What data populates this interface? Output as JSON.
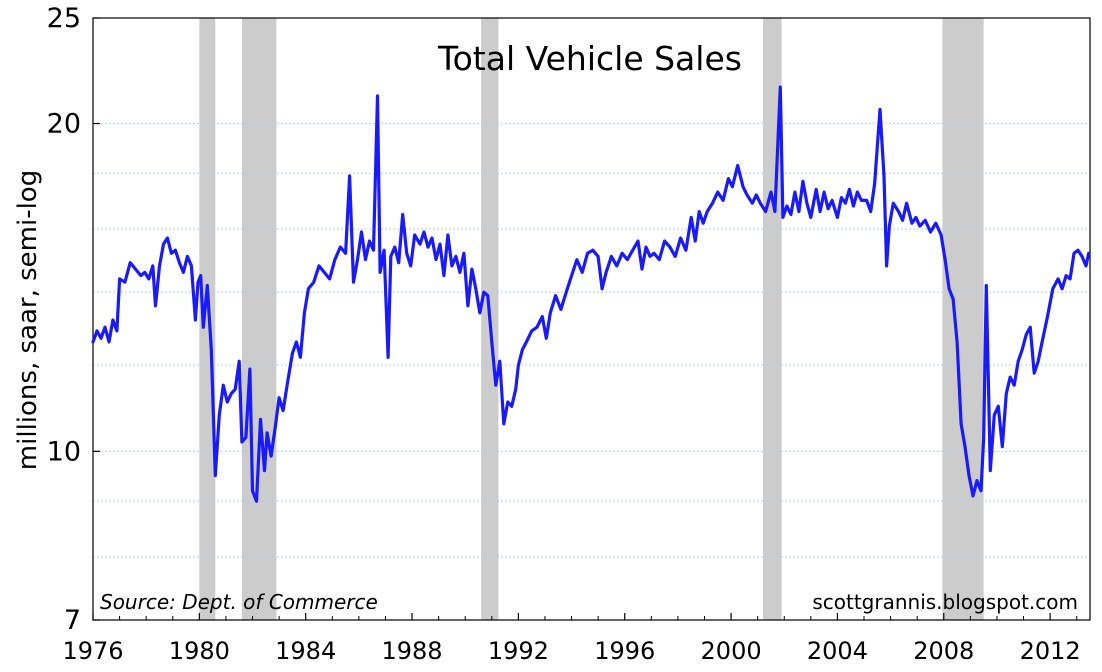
{
  "chart_data": {
    "type": "line",
    "title": "Total Vehicle Sales",
    "ylabel": "millions, saar, semi-log",
    "xlabel": "",
    "y_scale": "log",
    "ylim": [
      7,
      25
    ],
    "xlim": [
      1976,
      2013.5
    ],
    "y_ticks": [
      "7",
      "10",
      "20",
      "25"
    ],
    "x_ticks": [
      "1976",
      "1980",
      "1984",
      "1988",
      "1992",
      "1996",
      "2000",
      "2004",
      "2008",
      "2012"
    ],
    "grid": "horizontal, dotted, light blue",
    "line_color": "#1a1aff",
    "recession_color": "#cccccc",
    "source_note": "Source:  Dept. of Commerce",
    "credit": "scottgrannis.blogspot.com",
    "recessions": [
      {
        "start": 1980.0,
        "end": 1980.6
      },
      {
        "start": 1981.6,
        "end": 1982.9
      },
      {
        "start": 1990.6,
        "end": 1991.25
      },
      {
        "start": 2001.2,
        "end": 2001.9
      },
      {
        "start": 2007.95,
        "end": 2009.5
      }
    ],
    "series": [
      {
        "values": [
          [
            1976.0,
            12.6
          ],
          [
            1976.15,
            12.9
          ],
          [
            1976.3,
            12.7
          ],
          [
            1976.45,
            13.0
          ],
          [
            1976.6,
            12.6
          ],
          [
            1976.75,
            13.2
          ],
          [
            1976.9,
            12.9
          ],
          [
            1977.0,
            14.4
          ],
          [
            1977.2,
            14.3
          ],
          [
            1977.4,
            14.9
          ],
          [
            1977.6,
            14.7
          ],
          [
            1977.8,
            14.5
          ],
          [
            1977.95,
            14.6
          ],
          [
            1978.1,
            14.4
          ],
          [
            1978.25,
            14.8
          ],
          [
            1978.35,
            13.6
          ],
          [
            1978.5,
            14.8
          ],
          [
            1978.65,
            15.5
          ],
          [
            1978.8,
            15.7
          ],
          [
            1978.95,
            15.2
          ],
          [
            1979.1,
            15.3
          ],
          [
            1979.25,
            14.9
          ],
          [
            1979.4,
            14.6
          ],
          [
            1979.55,
            15.1
          ],
          [
            1979.7,
            14.8
          ],
          [
            1979.85,
            13.2
          ],
          [
            1979.95,
            14.3
          ],
          [
            1980.05,
            14.5
          ],
          [
            1980.15,
            13.0
          ],
          [
            1980.3,
            14.2
          ],
          [
            1980.45,
            12.4
          ],
          [
            1980.6,
            9.5
          ],
          [
            1980.75,
            10.8
          ],
          [
            1980.9,
            11.5
          ],
          [
            1981.05,
            11.1
          ],
          [
            1981.2,
            11.3
          ],
          [
            1981.35,
            11.4
          ],
          [
            1981.5,
            12.1
          ],
          [
            1981.6,
            10.2
          ],
          [
            1981.75,
            10.3
          ],
          [
            1981.9,
            11.9
          ],
          [
            1982.0,
            9.2
          ],
          [
            1982.15,
            9.0
          ],
          [
            1982.3,
            10.7
          ],
          [
            1982.45,
            9.6
          ],
          [
            1982.55,
            10.4
          ],
          [
            1982.7,
            9.9
          ],
          [
            1982.85,
            10.5
          ],
          [
            1983.0,
            11.2
          ],
          [
            1983.15,
            10.9
          ],
          [
            1983.3,
            11.5
          ],
          [
            1983.5,
            12.3
          ],
          [
            1983.65,
            12.6
          ],
          [
            1983.8,
            12.2
          ],
          [
            1983.95,
            13.4
          ],
          [
            1984.1,
            14.1
          ],
          [
            1984.3,
            14.3
          ],
          [
            1984.5,
            14.8
          ],
          [
            1984.7,
            14.6
          ],
          [
            1984.9,
            14.4
          ],
          [
            1985.1,
            15.0
          ],
          [
            1985.3,
            15.4
          ],
          [
            1985.5,
            15.2
          ],
          [
            1985.65,
            17.9
          ],
          [
            1985.8,
            14.3
          ],
          [
            1985.95,
            15.0
          ],
          [
            1986.1,
            15.9
          ],
          [
            1986.25,
            15.0
          ],
          [
            1986.4,
            15.6
          ],
          [
            1986.55,
            15.3
          ],
          [
            1986.7,
            21.2
          ],
          [
            1986.8,
            14.6
          ],
          [
            1986.95,
            15.3
          ],
          [
            1987.1,
            12.2
          ],
          [
            1987.2,
            15.1
          ],
          [
            1987.35,
            15.4
          ],
          [
            1987.5,
            14.9
          ],
          [
            1987.65,
            16.5
          ],
          [
            1987.8,
            15.2
          ],
          [
            1987.95,
            14.8
          ],
          [
            1988.1,
            15.8
          ],
          [
            1988.3,
            15.5
          ],
          [
            1988.45,
            15.9
          ],
          [
            1988.6,
            15.4
          ],
          [
            1988.75,
            15.7
          ],
          [
            1988.9,
            15.0
          ],
          [
            1989.05,
            15.5
          ],
          [
            1989.2,
            14.5
          ],
          [
            1989.35,
            15.8
          ],
          [
            1989.5,
            14.8
          ],
          [
            1989.65,
            15.1
          ],
          [
            1989.8,
            14.6
          ],
          [
            1989.95,
            15.2
          ],
          [
            1990.1,
            13.6
          ],
          [
            1990.25,
            14.7
          ],
          [
            1990.4,
            14.1
          ],
          [
            1990.55,
            13.4
          ],
          [
            1990.7,
            14.0
          ],
          [
            1990.85,
            13.9
          ],
          [
            1991.0,
            12.6
          ],
          [
            1991.15,
            11.5
          ],
          [
            1991.3,
            12.1
          ],
          [
            1991.45,
            10.6
          ],
          [
            1991.6,
            11.1
          ],
          [
            1991.75,
            11.0
          ],
          [
            1991.9,
            11.4
          ],
          [
            1992.0,
            12.0
          ],
          [
            1992.15,
            12.4
          ],
          [
            1992.3,
            12.6
          ],
          [
            1992.5,
            12.9
          ],
          [
            1992.7,
            13.0
          ],
          [
            1992.9,
            13.3
          ],
          [
            1993.05,
            12.7
          ],
          [
            1993.2,
            13.4
          ],
          [
            1993.4,
            13.9
          ],
          [
            1993.6,
            13.5
          ],
          [
            1993.8,
            14.0
          ],
          [
            1994.0,
            14.5
          ],
          [
            1994.2,
            15.0
          ],
          [
            1994.4,
            14.6
          ],
          [
            1994.6,
            15.2
          ],
          [
            1994.8,
            15.3
          ],
          [
            1995.0,
            15.1
          ],
          [
            1995.15,
            14.1
          ],
          [
            1995.3,
            14.6
          ],
          [
            1995.5,
            15.1
          ],
          [
            1995.7,
            14.8
          ],
          [
            1995.9,
            15.2
          ],
          [
            1996.1,
            15.0
          ],
          [
            1996.3,
            15.3
          ],
          [
            1996.5,
            15.6
          ],
          [
            1996.65,
            14.7
          ],
          [
            1996.8,
            15.4
          ],
          [
            1996.95,
            15.1
          ],
          [
            1997.1,
            15.2
          ],
          [
            1997.3,
            15.0
          ],
          [
            1997.5,
            15.6
          ],
          [
            1997.7,
            15.4
          ],
          [
            1997.9,
            15.1
          ],
          [
            1998.1,
            15.7
          ],
          [
            1998.3,
            15.3
          ],
          [
            1998.5,
            16.4
          ],
          [
            1998.65,
            15.6
          ],
          [
            1998.8,
            16.6
          ],
          [
            1998.95,
            16.2
          ],
          [
            1999.1,
            16.6
          ],
          [
            1999.3,
            16.9
          ],
          [
            1999.5,
            17.3
          ],
          [
            1999.7,
            17.0
          ],
          [
            1999.9,
            17.8
          ],
          [
            2000.05,
            17.5
          ],
          [
            2000.25,
            18.3
          ],
          [
            2000.45,
            17.5
          ],
          [
            2000.6,
            17.2
          ],
          [
            2000.8,
            16.9
          ],
          [
            2000.95,
            17.2
          ],
          [
            2001.1,
            16.9
          ],
          [
            2001.3,
            16.6
          ],
          [
            2001.5,
            17.3
          ],
          [
            2001.65,
            16.6
          ],
          [
            2001.85,
            21.6
          ],
          [
            2001.95,
            16.4
          ],
          [
            2002.1,
            16.8
          ],
          [
            2002.25,
            16.5
          ],
          [
            2002.4,
            17.3
          ],
          [
            2002.55,
            16.6
          ],
          [
            2002.7,
            17.7
          ],
          [
            2002.85,
            16.9
          ],
          [
            2003.0,
            16.4
          ],
          [
            2003.2,
            17.4
          ],
          [
            2003.35,
            16.6
          ],
          [
            2003.5,
            17.3
          ],
          [
            2003.65,
            16.7
          ],
          [
            2003.8,
            17.0
          ],
          [
            2004.0,
            16.4
          ],
          [
            2004.15,
            17.1
          ],
          [
            2004.3,
            16.9
          ],
          [
            2004.45,
            17.4
          ],
          [
            2004.6,
            16.8
          ],
          [
            2004.75,
            17.3
          ],
          [
            2004.9,
            17.0
          ],
          [
            2005.1,
            17.0
          ],
          [
            2005.25,
            16.6
          ],
          [
            2005.4,
            17.6
          ],
          [
            2005.6,
            20.6
          ],
          [
            2005.75,
            17.9
          ],
          [
            2005.85,
            14.8
          ],
          [
            2005.95,
            16.1
          ],
          [
            2006.1,
            16.9
          ],
          [
            2006.3,
            16.6
          ],
          [
            2006.45,
            16.3
          ],
          [
            2006.6,
            16.9
          ],
          [
            2006.8,
            16.2
          ],
          [
            2006.95,
            16.4
          ],
          [
            2007.1,
            16.1
          ],
          [
            2007.3,
            16.3
          ],
          [
            2007.5,
            15.9
          ],
          [
            2007.7,
            16.2
          ],
          [
            2007.9,
            15.8
          ],
          [
            2008.05,
            15.0
          ],
          [
            2008.2,
            14.1
          ],
          [
            2008.35,
            13.8
          ],
          [
            2008.5,
            12.6
          ],
          [
            2008.65,
            10.6
          ],
          [
            2008.8,
            10.1
          ],
          [
            2008.95,
            9.5
          ],
          [
            2009.1,
            9.1
          ],
          [
            2009.25,
            9.4
          ],
          [
            2009.4,
            9.2
          ],
          [
            2009.5,
            10.3
          ],
          [
            2009.6,
            14.2
          ],
          [
            2009.75,
            9.6
          ],
          [
            2009.9,
            10.8
          ],
          [
            2010.05,
            11.0
          ],
          [
            2010.2,
            10.1
          ],
          [
            2010.35,
            11.3
          ],
          [
            2010.5,
            11.7
          ],
          [
            2010.65,
            11.5
          ],
          [
            2010.8,
            12.1
          ],
          [
            2010.95,
            12.4
          ],
          [
            2011.1,
            12.8
          ],
          [
            2011.25,
            13.0
          ],
          [
            2011.4,
            11.8
          ],
          [
            2011.55,
            12.1
          ],
          [
            2011.7,
            12.6
          ],
          [
            2011.9,
            13.3
          ],
          [
            2012.1,
            14.1
          ],
          [
            2012.3,
            14.4
          ],
          [
            2012.45,
            14.1
          ],
          [
            2012.6,
            14.5
          ],
          [
            2012.75,
            14.4
          ],
          [
            2012.9,
            15.2
          ],
          [
            2013.05,
            15.3
          ],
          [
            2013.2,
            15.1
          ],
          [
            2013.35,
            14.8
          ],
          [
            2013.45,
            15.2
          ]
        ]
      }
    ]
  }
}
